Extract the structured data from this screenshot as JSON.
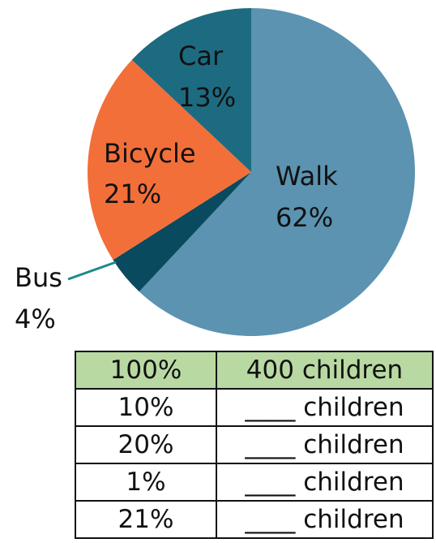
{
  "chart_data": {
    "type": "pie",
    "title": "",
    "slices": [
      {
        "label": "Walk",
        "value": 62,
        "value_label": "62%",
        "color": "#5b93b1"
      },
      {
        "label": "Bus",
        "value": 4,
        "value_label": "4%",
        "color": "#0a4a5e"
      },
      {
        "label": "Bicycle",
        "value": 21,
        "value_label": "21%",
        "color": "#f26f3a"
      },
      {
        "label": "Car",
        "value": 13,
        "value_label": "13%",
        "color": "#1d6b80"
      }
    ],
    "callout_color": "#1a8a8a"
  },
  "table": {
    "header": {
      "percent": "100%",
      "children": "400 children"
    },
    "rows": [
      {
        "percent": "10%",
        "children": "____ children"
      },
      {
        "percent": "20%",
        "children": "____ children"
      },
      {
        "percent": "1%",
        "children": "____ children"
      },
      {
        "percent": "21%",
        "children": "____ children"
      }
    ],
    "header_color": "#b9d9a3"
  }
}
